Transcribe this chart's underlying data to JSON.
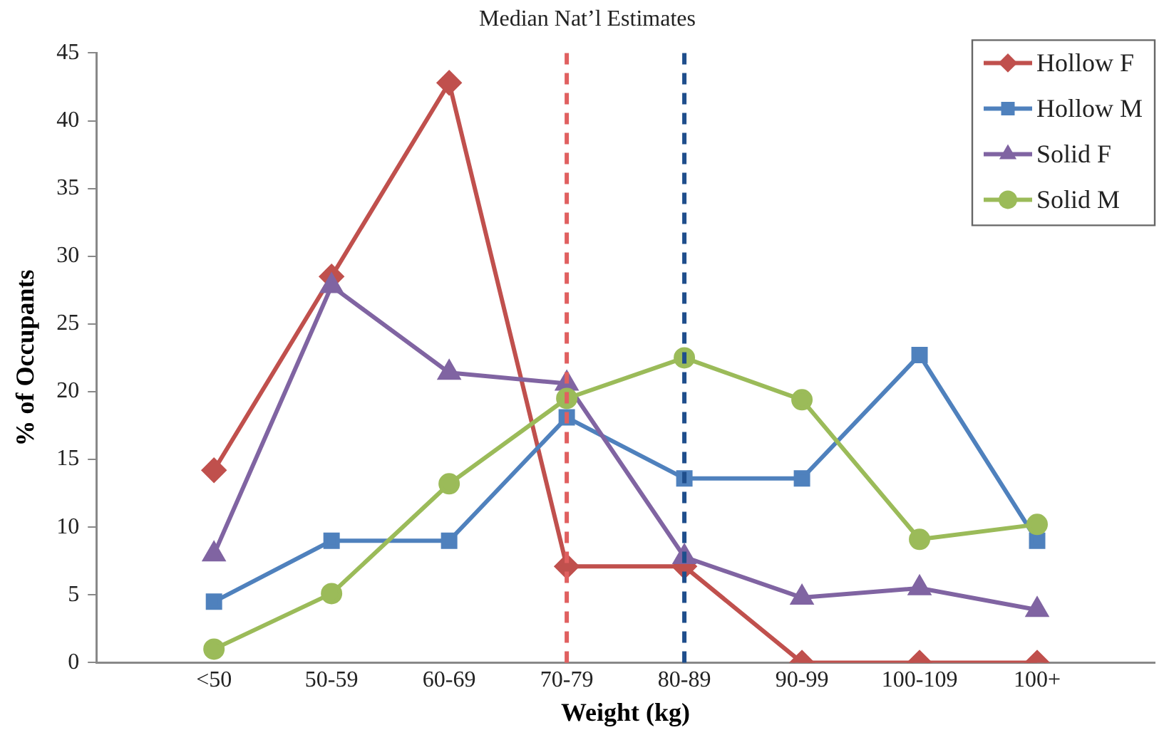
{
  "chart_data": {
    "type": "line",
    "title": "Median Nat’l Estimates",
    "xlabel": "Weight (kg)",
    "ylabel": "% of Occupants",
    "categories": [
      "<50",
      "50-59",
      "60-69",
      "70-79",
      "80-89",
      "90-99",
      "100-109",
      "100+"
    ],
    "series": [
      {
        "name": "Hollow F",
        "color": "#c0504d",
        "marker": "diamond",
        "values": [
          14.2,
          28.5,
          42.8,
          7.1,
          7.1,
          0,
          0,
          0
        ]
      },
      {
        "name": "Hollow M",
        "color": "#4f81bd",
        "marker": "square",
        "values": [
          4.5,
          9.0,
          9.0,
          18.1,
          13.6,
          13.6,
          22.7,
          9.0
        ]
      },
      {
        "name": "Solid F",
        "color": "#8064a2",
        "marker": "triangle",
        "values": [
          8.0,
          27.8,
          21.4,
          20.6,
          7.8,
          4.8,
          5.5,
          3.9
        ]
      },
      {
        "name": "Solid M",
        "color": "#9bbb59",
        "marker": "circle",
        "values": [
          1.0,
          5.1,
          13.2,
          19.5,
          22.5,
          19.4,
          9.1,
          10.2
        ]
      }
    ],
    "ref_lines": [
      {
        "axis": "x",
        "value": "70-79",
        "color": "#e06060",
        "line_style": "dashed"
      },
      {
        "axis": "x",
        "value": "80-89",
        "color": "#1f4e8c",
        "line_style": "dashed"
      }
    ],
    "ylim": [
      0,
      45
    ],
    "yticks": [
      0,
      5,
      10,
      15,
      20,
      25,
      30,
      35,
      40,
      45
    ],
    "grid": false,
    "legend": "top right",
    "line_style": "solid"
  }
}
